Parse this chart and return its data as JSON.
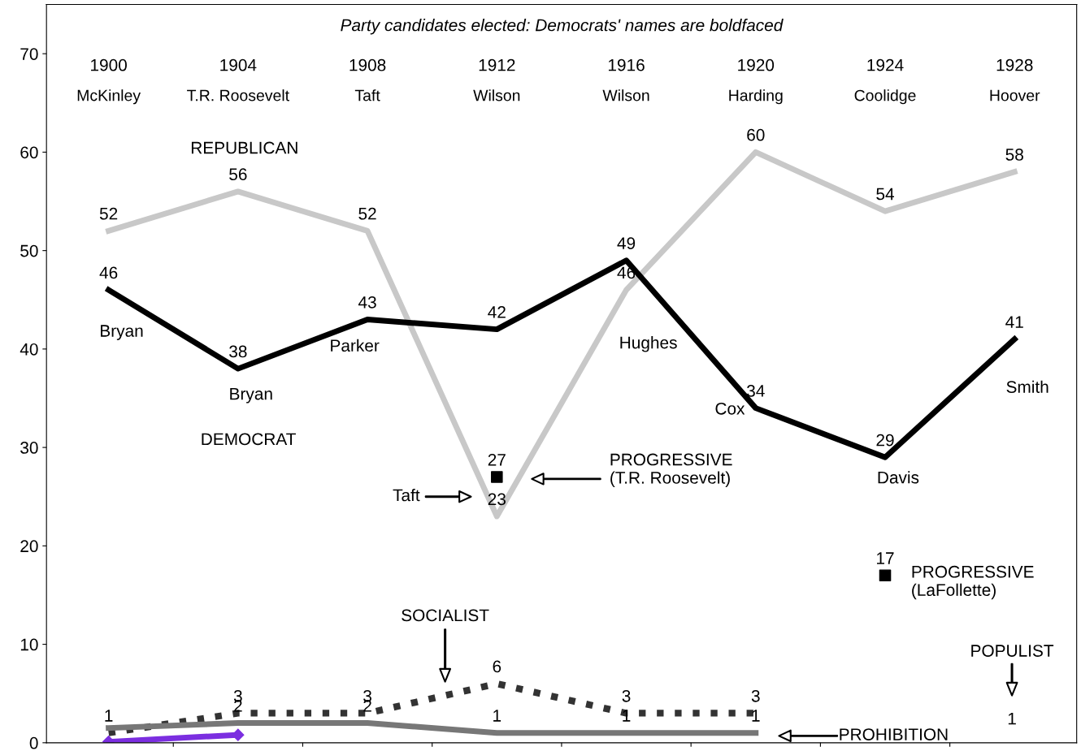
{
  "chart_data": {
    "type": "line",
    "title": "Party candidates elected: Democrats' names are boldfaced",
    "categories": [
      "1900",
      "1904",
      "1908",
      "1912",
      "1916",
      "1920",
      "1924",
      "1928"
    ],
    "ylim": [
      0,
      75
    ],
    "yticks": [
      0,
      10,
      20,
      30,
      40,
      50,
      60,
      70
    ],
    "grid": false,
    "series": [
      {
        "color": "#c8c8c8",
        "values": [
          52,
          56,
          52,
          23,
          46,
          60,
          54,
          58
        ],
        "value_labels": [
          "52",
          "56",
          "52",
          "23",
          "46",
          "60",
          "54",
          "58"
        ]
      },
      {
        "color": "#000000",
        "values": [
          46,
          38,
          43,
          42,
          49,
          34,
          29,
          41
        ],
        "value_labels": [
          "46",
          "38",
          "43",
          "42",
          "49",
          "34",
          "29",
          "41"
        ]
      },
      {
        "type": "scatter",
        "marker": "square",
        "color": "#000000",
        "values": [
          null,
          null,
          null,
          27,
          null,
          null,
          17,
          null
        ],
        "value_labels": [
          null,
          null,
          null,
          "27",
          null,
          null,
          "17",
          null
        ]
      },
      {
        "color": "#333333",
        "line_style": "dotted",
        "values": [
          1,
          3,
          3,
          6,
          3,
          3,
          null,
          null
        ],
        "value_labels": [
          "1",
          "3",
          "3",
          "6",
          "3",
          "3",
          null,
          null
        ]
      },
      {
        "color": "#777777",
        "values": [
          1.5,
          2,
          2,
          1,
          1,
          1,
          null,
          null
        ],
        "value_labels": [
          null,
          "2",
          "2",
          "1",
          "1",
          "1",
          null,
          null
        ]
      },
      {
        "color": "#7b2ee0",
        "marker": "diamond",
        "values": [
          0.1,
          0.8,
          null,
          null,
          null,
          null,
          null,
          null
        ]
      }
    ],
    "annotations": [
      "McKinley",
      "T.R. Roosevelt",
      "Taft",
      "Wilson",
      "Wilson",
      "Harding",
      "Coolidge",
      "Hoover",
      "REPUBLICAN",
      "DEMOCRAT",
      "Taft",
      "PROGRESSIVE\n(T.R. Roosevelt)",
      "SOCIALIST",
      "PROGRESSIVE\n(LaFollette)",
      "POPULIST",
      "1",
      "PROHIBITION",
      "Hughes",
      {
        "text": "Bryan",
        "x": "1900",
        "y": 46
      },
      {
        "text": "Bryan",
        "x": "1904",
        "y": 38
      },
      {
        "text": "Parker",
        "x": "1908",
        "y": 43
      },
      {
        "text": "Cox",
        "x": "1920",
        "y": 34
      },
      {
        "text": "Davis",
        "x": "1924",
        "y": 29
      },
      {
        "text": "Smith",
        "x": "1928",
        "y": 41
      }
    ]
  }
}
